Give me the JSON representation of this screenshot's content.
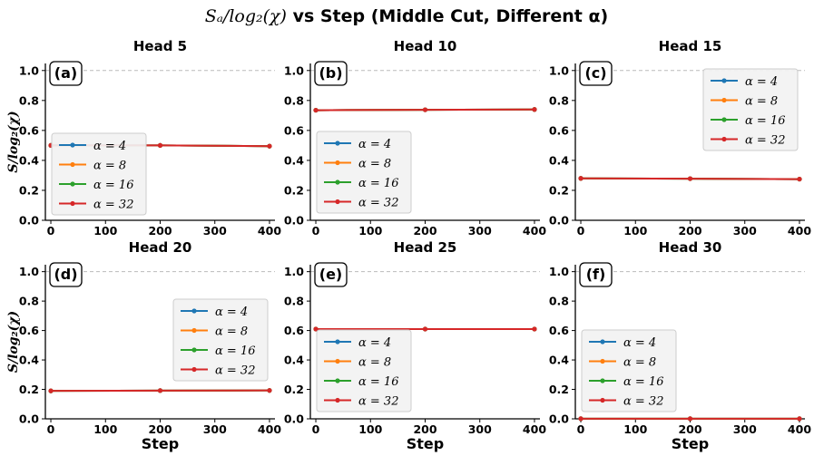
{
  "figure": {
    "title_math": "Sₐ/log₂(χ)",
    "title_text": " vs Step (Middle Cut, Different α)"
  },
  "chart_data": [
    {
      "type": "line",
      "panel": "(a)",
      "title": "Head 5",
      "xlabel": "",
      "ylabel": "S/log₂(χ)",
      "xlim": [
        -10,
        410
      ],
      "ylim": [
        0,
        1.0
      ],
      "xticks": [
        "0",
        "100",
        "200",
        "300",
        "400"
      ],
      "yticks": [
        "0.0",
        "0.2",
        "0.4",
        "0.6",
        "0.8",
        "1.0"
      ],
      "reference_line": 1.0,
      "legend_position": "center-left",
      "x": [
        0,
        200,
        400
      ],
      "series": [
        {
          "name": "α = 4",
          "color": "#1f77b4",
          "values": [
            0.5,
            0.5,
            0.495
          ]
        },
        {
          "name": "α = 8",
          "color": "#ff7f0e",
          "values": [
            0.5,
            0.5,
            0.495
          ]
        },
        {
          "name": "α = 16",
          "color": "#2ca02c",
          "values": [
            0.5,
            0.5,
            0.495
          ]
        },
        {
          "name": "α = 32",
          "color": "#d62728",
          "values": [
            0.5,
            0.5,
            0.495
          ]
        }
      ]
    },
    {
      "type": "line",
      "panel": "(b)",
      "title": "Head 10",
      "xlabel": "",
      "ylabel": "",
      "xlim": [
        -10,
        410
      ],
      "ylim": [
        0,
        1.0
      ],
      "xticks": [
        "0",
        "100",
        "200",
        "300",
        "400"
      ],
      "yticks": [
        "0.0",
        "0.2",
        "0.4",
        "0.6",
        "0.8",
        "1.0"
      ],
      "reference_line": 1.0,
      "legend_position": "lower-left",
      "x": [
        0,
        200,
        400
      ],
      "series": [
        {
          "name": "α = 4",
          "color": "#1f77b4",
          "values": [
            0.735,
            0.738,
            0.74
          ]
        },
        {
          "name": "α = 8",
          "color": "#ff7f0e",
          "values": [
            0.735,
            0.738,
            0.74
          ]
        },
        {
          "name": "α = 16",
          "color": "#2ca02c",
          "values": [
            0.735,
            0.738,
            0.74
          ]
        },
        {
          "name": "α = 32",
          "color": "#d62728",
          "values": [
            0.735,
            0.738,
            0.74
          ]
        }
      ]
    },
    {
      "type": "line",
      "panel": "(c)",
      "title": "Head 15",
      "xlabel": "",
      "ylabel": "",
      "xlim": [
        -10,
        410
      ],
      "ylim": [
        0,
        1.0
      ],
      "xticks": [
        "0",
        "100",
        "200",
        "300",
        "400"
      ],
      "yticks": [
        "0.0",
        "0.2",
        "0.4",
        "0.6",
        "0.8",
        "1.0"
      ],
      "reference_line": 1.0,
      "legend_position": "upper-right",
      "x": [
        0,
        200,
        400
      ],
      "series": [
        {
          "name": "α = 4",
          "color": "#1f77b4",
          "values": [
            0.28,
            0.278,
            0.275
          ]
        },
        {
          "name": "α = 8",
          "color": "#ff7f0e",
          "values": [
            0.28,
            0.278,
            0.275
          ]
        },
        {
          "name": "α = 16",
          "color": "#2ca02c",
          "values": [
            0.28,
            0.278,
            0.275
          ]
        },
        {
          "name": "α = 32",
          "color": "#d62728",
          "values": [
            0.28,
            0.278,
            0.275
          ]
        }
      ]
    },
    {
      "type": "line",
      "panel": "(d)",
      "title": "Head 20",
      "xlabel": "Step",
      "ylabel": "S/log₂(χ)",
      "xlim": [
        -10,
        410
      ],
      "ylim": [
        0,
        1.0
      ],
      "xticks": [
        "0",
        "100",
        "200",
        "300",
        "400"
      ],
      "yticks": [
        "0.0",
        "0.2",
        "0.4",
        "0.6",
        "0.8",
        "1.0"
      ],
      "reference_line": 1.0,
      "legend_position": "center-right",
      "x": [
        0,
        200,
        400
      ],
      "series": [
        {
          "name": "α = 4",
          "color": "#1f77b4",
          "values": [
            0.19,
            0.192,
            0.193
          ]
        },
        {
          "name": "α = 8",
          "color": "#ff7f0e",
          "values": [
            0.19,
            0.192,
            0.193
          ]
        },
        {
          "name": "α = 16",
          "color": "#2ca02c",
          "values": [
            0.19,
            0.192,
            0.193
          ]
        },
        {
          "name": "α = 32",
          "color": "#d62728",
          "values": [
            0.19,
            0.192,
            0.193
          ]
        }
      ]
    },
    {
      "type": "line",
      "panel": "(e)",
      "title": "Head 25",
      "xlabel": "Step",
      "ylabel": "",
      "xlim": [
        -10,
        410
      ],
      "ylim": [
        0,
        1.0
      ],
      "xticks": [
        "0",
        "100",
        "200",
        "300",
        "400"
      ],
      "yticks": [
        "0.0",
        "0.2",
        "0.4",
        "0.6",
        "0.8",
        "1.0"
      ],
      "reference_line": 1.0,
      "legend_position": "lower-left",
      "x": [
        0,
        200,
        400
      ],
      "series": [
        {
          "name": "α = 4",
          "color": "#1f77b4",
          "values": [
            0.61,
            0.61,
            0.61
          ]
        },
        {
          "name": "α = 8",
          "color": "#ff7f0e",
          "values": [
            0.61,
            0.61,
            0.61
          ]
        },
        {
          "name": "α = 16",
          "color": "#2ca02c",
          "values": [
            0.61,
            0.61,
            0.61
          ]
        },
        {
          "name": "α = 32",
          "color": "#d62728",
          "values": [
            0.61,
            0.61,
            0.61
          ]
        }
      ]
    },
    {
      "type": "line",
      "panel": "(f)",
      "title": "Head 30",
      "xlabel": "Step",
      "ylabel": "",
      "xlim": [
        -10,
        410
      ],
      "ylim": [
        0,
        1.0
      ],
      "xticks": [
        "0",
        "100",
        "200",
        "300",
        "400"
      ],
      "yticks": [
        "0.0",
        "0.2",
        "0.4",
        "0.6",
        "0.8",
        "1.0"
      ],
      "reference_line": 1.0,
      "legend_position": "lower-left",
      "x": [
        0,
        200,
        400
      ],
      "series": [
        {
          "name": "α = 4",
          "color": "#1f77b4",
          "values": [
            0.001,
            0.001,
            0.001
          ]
        },
        {
          "name": "α = 8",
          "color": "#ff7f0e",
          "values": [
            0.001,
            0.001,
            0.001
          ]
        },
        {
          "name": "α = 16",
          "color": "#2ca02c",
          "values": [
            0.001,
            0.001,
            0.001
          ]
        },
        {
          "name": "α = 32",
          "color": "#d62728",
          "values": [
            0.001,
            0.001,
            0.001
          ]
        }
      ]
    }
  ]
}
